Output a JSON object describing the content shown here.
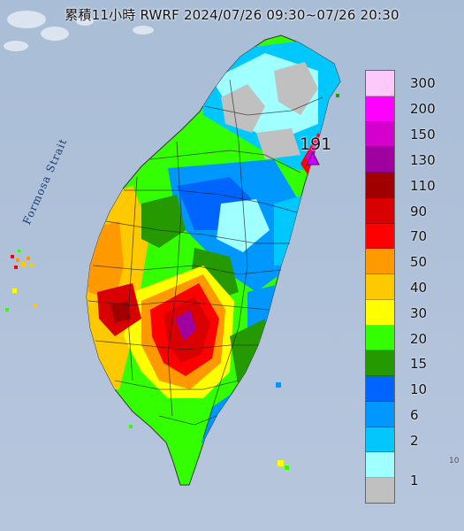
{
  "title": "累積11小時 RWRF 2024/07/26 09:30~07/26 20:30",
  "strait_label": "Formosa Strait",
  "max_marker": {
    "value_text": "191",
    "icon": "triangle-marker-icon",
    "color": "#c800ff"
  },
  "corner_text": "10",
  "legend": {
    "unit": "",
    "items": [
      {
        "label": "300",
        "color": "#fdc9fb"
      },
      {
        "label": "200",
        "color": "#fe00fe"
      },
      {
        "label": "150",
        "color": "#d400cc"
      },
      {
        "label": "130",
        "color": "#a0009f"
      },
      {
        "label": "110",
        "color": "#a00000"
      },
      {
        "label": "90",
        "color": "#d80000"
      },
      {
        "label": "70",
        "color": "#fe0000"
      },
      {
        "label": "50",
        "color": "#ff9900"
      },
      {
        "label": "40",
        "color": "#ffc900"
      },
      {
        "label": "30",
        "color": "#ffff00"
      },
      {
        "label": "20",
        "color": "#33ff00"
      },
      {
        "label": "15",
        "color": "#259a00"
      },
      {
        "label": "10",
        "color": "#0064ff"
      },
      {
        "label": "6",
        "color": "#0098ff"
      },
      {
        "label": "2",
        "color": "#00c8ff"
      },
      {
        "label": "1",
        "color": "#a0ffff"
      },
      {
        "label": "",
        "color": "#c0c0c0"
      }
    ]
  }
}
